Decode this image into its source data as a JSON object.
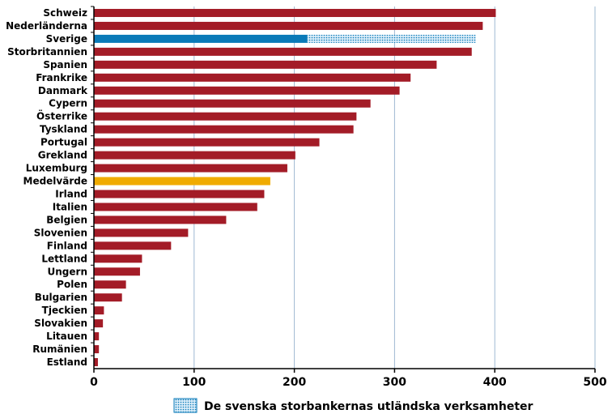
{
  "chart_data": {
    "type": "bar",
    "orientation": "horizontal",
    "title": "",
    "xlabel": "",
    "ylabel": "",
    "xlim": [
      0,
      500
    ],
    "x_ticks": [
      0,
      100,
      200,
      300,
      400,
      500
    ],
    "grid": "vertical",
    "legend_position": "bottom",
    "colors": {
      "default": "#a31c27",
      "highlight": "#0a7ab8",
      "average": "#f0ab00",
      "grid": "#9eb8d2",
      "axis": "#000000",
      "legend_fill": "#0a7ab8"
    },
    "categories": [
      "Schweiz",
      "Nederländerna",
      "Sverige",
      "Storbritannien",
      "Spanien",
      "Frankrike",
      "Danmark",
      "Cypern",
      "Österrike",
      "Tyskland",
      "Portugal",
      "Grekland",
      "Luxemburg",
      "Medelvärde",
      "Irland",
      "Italien",
      "Belgien",
      "Slovenien",
      "Finland",
      "Lettland",
      "Ungern",
      "Polen",
      "Bulgarien",
      "Tjeckien",
      "Slovakien",
      "Litauen",
      "Rumänien",
      "Estland"
    ],
    "values": [
      401,
      388,
      213,
      377,
      342,
      316,
      305,
      276,
      262,
      259,
      225,
      201,
      193,
      176,
      170,
      163,
      132,
      94,
      77,
      48,
      46,
      32,
      28,
      10,
      9,
      5,
      5,
      4
    ],
    "series": [
      {
        "name": "De svenska storbankernas utländska verksamheter",
        "category": "Sverige",
        "start": 213,
        "end": 381
      }
    ],
    "highlight_category": "Sverige",
    "average_category": "Medelvärde"
  }
}
